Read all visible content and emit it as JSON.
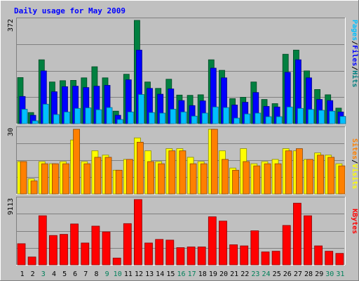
{
  "chart_data": {
    "type": "bar",
    "title": "Daily usage for May 2009",
    "days": [
      "1",
      "2",
      "3",
      "4",
      "5",
      "6",
      "7",
      "8",
      "9",
      "10",
      "11",
      "12",
      "13",
      "14",
      "15",
      "16",
      "17",
      "18",
      "19",
      "20",
      "21",
      "22",
      "23",
      "24",
      "25",
      "26",
      "27",
      "28",
      "29",
      "30",
      "31"
    ],
    "weekend_days": [
      "3",
      "9",
      "10",
      "16",
      "17",
      "23",
      "24",
      "30",
      "31"
    ],
    "panels": [
      {
        "id": "hits_files_pages",
        "max_label": "372",
        "ymax": 372,
        "legend": [
          "Pages",
          "Files",
          "Hits"
        ],
        "series": [
          {
            "name": "Hits",
            "color": "#008040",
            "values": [
              166,
              40,
              230,
              150,
              155,
              156,
              165,
              205,
              165,
              45,
              178,
              372,
              150,
              127,
              160,
              103,
              102,
              104,
              230,
              192,
              90,
              95,
              150,
              87,
              72,
              250,
              265,
              190,
              123,
              104,
              56
            ]
          },
          {
            "name": "Files",
            "color": "#0000ff",
            "values": [
              98,
              30,
              190,
              115,
              133,
              135,
              130,
              135,
              138,
              30,
              158,
              265,
              127,
              106,
              125,
              83,
              65,
              82,
              200,
              165,
              67,
              77,
              112,
              62,
              60,
              185,
              230,
              165,
              87,
              83,
              42
            ]
          },
          {
            "name": "Pages",
            "color": "#00c0ff",
            "values": [
              52,
              10,
              70,
              33,
              42,
              55,
              57,
              50,
              58,
              15,
              42,
              105,
              40,
              38,
              52,
              42,
              27,
              38,
              60,
              58,
              20,
              35,
              38,
              25,
              25,
              60,
              55,
              51,
              48,
              45,
              26
            ]
          }
        ]
      },
      {
        "id": "visits_sites",
        "max_label": "30",
        "ymax": 30,
        "legend": [
          "Sites",
          "Visits"
        ],
        "series": [
          {
            "name": "Visits",
            "color": "#ffff00",
            "values": [
              15,
              7,
              15,
              14,
              15,
              25,
              15,
              20,
              18,
              11,
              16,
              26,
              20,
              15,
              21,
              21,
              17,
              15,
              30,
              20,
              12,
              21,
              14,
              15,
              16,
              21,
              20,
              16,
              19,
              18,
              14
            ]
          },
          {
            "name": "Sites",
            "color": "#ff8000",
            "values": [
              15,
              6,
              14,
              14,
              14,
              30,
              14,
              17,
              17,
              11,
              16,
              24,
              15,
              14,
              20,
              20,
              14,
              14,
              30,
              16,
              11,
              15,
              13,
              14,
              14,
              20,
              21,
              16,
              18,
              17,
              13
            ]
          }
        ]
      },
      {
        "id": "kbytes",
        "max_label": "9113",
        "ymax": 9113,
        "legend": [
          "KBytes"
        ],
        "series": [
          {
            "name": "KBytes",
            "color": "#ff0000",
            "values": [
              2950,
              1100,
              6850,
              4100,
              4250,
              5700,
              3050,
              5400,
              4600,
              950,
              5750,
              9113,
              3050,
              3550,
              3450,
              2400,
              2500,
              2500,
              6700,
              6100,
              2800,
              2650,
              4750,
              1800,
              1900,
              5500,
              8600,
              6850,
              2650,
              1900,
              1600
            ]
          }
        ]
      }
    ]
  }
}
